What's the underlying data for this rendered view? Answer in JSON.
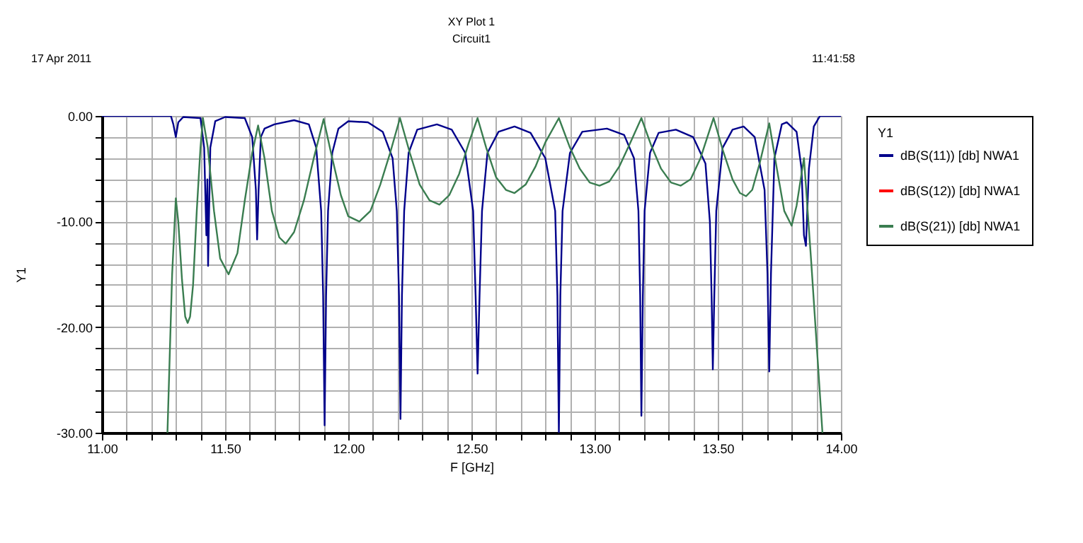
{
  "chart_data": {
    "type": "line",
    "title": "XY Plot 1",
    "subtitle": "Circuit1",
    "xlabel": "F [GHz]",
    "ylabel": "Y1",
    "legend_title": "Y1",
    "annotations": [
      "17 Apr 2011",
      "11:41:58"
    ],
    "xlim": [
      11.0,
      14.0
    ],
    "ylim": [
      -30.0,
      0.0
    ],
    "xticks": [
      {
        "value": 11.0,
        "label": "11.00"
      },
      {
        "value": 11.1,
        "label": null
      },
      {
        "value": 11.2,
        "label": null
      },
      {
        "value": 11.3,
        "label": null
      },
      {
        "value": 11.4,
        "label": null
      },
      {
        "value": 11.5,
        "label": "11.50"
      },
      {
        "value": 11.6,
        "label": null
      },
      {
        "value": 11.7,
        "label": null
      },
      {
        "value": 11.8,
        "label": null
      },
      {
        "value": 11.9,
        "label": null
      },
      {
        "value": 12.0,
        "label": "12.00"
      },
      {
        "value": 12.1,
        "label": null
      },
      {
        "value": 12.2,
        "label": null
      },
      {
        "value": 12.3,
        "label": null
      },
      {
        "value": 12.4,
        "label": null
      },
      {
        "value": 12.5,
        "label": "12.50"
      },
      {
        "value": 12.6,
        "label": null
      },
      {
        "value": 12.7,
        "label": null
      },
      {
        "value": 12.8,
        "label": null
      },
      {
        "value": 12.9,
        "label": null
      },
      {
        "value": 13.0,
        "label": "13.00"
      },
      {
        "value": 13.1,
        "label": null
      },
      {
        "value": 13.2,
        "label": null
      },
      {
        "value": 13.3,
        "label": null
      },
      {
        "value": 13.4,
        "label": null
      },
      {
        "value": 13.5,
        "label": "13.50"
      },
      {
        "value": 13.6,
        "label": null
      },
      {
        "value": 13.7,
        "label": null
      },
      {
        "value": 13.8,
        "label": null
      },
      {
        "value": 13.9,
        "label": null
      },
      {
        "value": 14.0,
        "label": "14.00"
      }
    ],
    "yticks": [
      {
        "value": -30,
        "label": "-30.00"
      },
      {
        "value": -28,
        "label": null
      },
      {
        "value": -26,
        "label": null
      },
      {
        "value": -24,
        "label": null
      },
      {
        "value": -22,
        "label": null
      },
      {
        "value": -20,
        "label": "-20.00"
      },
      {
        "value": -18,
        "label": null
      },
      {
        "value": -16,
        "label": null
      },
      {
        "value": -14,
        "label": null
      },
      {
        "value": -12,
        "label": null
      },
      {
        "value": -10,
        "label": "-10.00"
      },
      {
        "value": -8,
        "label": null
      },
      {
        "value": -6,
        "label": null
      },
      {
        "value": -4,
        "label": null
      },
      {
        "value": -2,
        "label": null
      },
      {
        "value": 0,
        "label": "0.00"
      }
    ],
    "grid": true,
    "legend": "right",
    "marker": "none",
    "line_style": "solid",
    "series": [
      {
        "name": "dB(S(11)) [db] NWA1",
        "color": "#00008b",
        "x": [
          11.0,
          11.28,
          11.29,
          11.3,
          11.31,
          11.33,
          11.4,
          11.415,
          11.424,
          11.428,
          11.431,
          11.44,
          11.46,
          11.5,
          11.58,
          11.61,
          11.625,
          11.63,
          11.636,
          11.645,
          11.66,
          11.7,
          11.78,
          11.84,
          11.87,
          11.89,
          11.898,
          11.904,
          11.91,
          11.918,
          11.935,
          11.96,
          12.0,
          12.08,
          12.14,
          12.18,
          12.197,
          12.206,
          12.212,
          12.218,
          12.227,
          12.245,
          12.28,
          12.36,
          12.42,
          12.475,
          12.507,
          12.517,
          12.525,
          12.533,
          12.543,
          12.565,
          12.61,
          12.675,
          12.74,
          12.8,
          12.84,
          12.849,
          12.855,
          12.861,
          12.87,
          12.9,
          12.95,
          13.05,
          13.12,
          13.16,
          13.178,
          13.185,
          13.19,
          13.196,
          13.203,
          13.225,
          13.26,
          13.33,
          13.4,
          13.45,
          13.468,
          13.475,
          13.48,
          13.486,
          13.494,
          13.52,
          13.56,
          13.605,
          13.65,
          13.69,
          13.702,
          13.709,
          13.716,
          13.73,
          13.76,
          13.78,
          13.82,
          13.84,
          13.85,
          13.858,
          13.87,
          13.89,
          13.915,
          14.0
        ],
        "values": [
          0,
          0,
          -0.8,
          -2,
          -0.6,
          -0.1,
          -0.2,
          -3,
          -11.3,
          -6,
          -14.2,
          -3,
          -0.5,
          -0.1,
          -0.2,
          -2,
          -7,
          -11.7,
          -7,
          -2,
          -1.2,
          -0.8,
          -0.4,
          -0.8,
          -3,
          -9,
          -17,
          -29.3,
          -17,
          -9,
          -3.5,
          -1.2,
          -0.5,
          -0.6,
          -1.5,
          -4,
          -9,
          -17,
          -28.7,
          -17,
          -9,
          -3.5,
          -1.3,
          -0.8,
          -1.3,
          -3.5,
          -9,
          -17,
          -24.4,
          -17,
          -9,
          -3.5,
          -1.5,
          -1.0,
          -1.6,
          -4,
          -9,
          -17,
          -30,
          -17,
          -9,
          -3.5,
          -1.5,
          -1.2,
          -1.8,
          -4,
          -9,
          -17,
          -28.4,
          -17,
          -9,
          -3.5,
          -1.6,
          -1.3,
          -2,
          -4.5,
          -10,
          -17,
          -24,
          -17,
          -9,
          -3,
          -1.3,
          -1.0,
          -2,
          -7,
          -15,
          -24.2,
          -15,
          -4,
          -0.8,
          -0.6,
          -1.5,
          -5,
          -11.3,
          -12.3,
          -5,
          -1,
          0,
          0
        ]
      },
      {
        "name": "dB(S(12)) [db] NWA1",
        "color": "#ff0000"
      },
      {
        "name": "dB(S(21)) [db] NWA1",
        "color": "#3a7d50",
        "x": [
          11.266,
          11.285,
          11.3,
          11.31,
          11.325,
          11.338,
          11.348,
          11.358,
          11.37,
          11.385,
          11.4,
          11.41,
          11.43,
          11.455,
          11.48,
          11.514,
          11.55,
          11.58,
          11.61,
          11.634,
          11.66,
          11.69,
          11.72,
          11.746,
          11.78,
          11.82,
          11.86,
          11.9,
          11.93,
          11.97,
          12.0,
          12.045,
          12.09,
          12.13,
          12.17,
          12.21,
          12.25,
          12.29,
          12.33,
          12.37,
          12.41,
          12.45,
          12.49,
          12.525,
          12.56,
          12.6,
          12.64,
          12.675,
          12.72,
          12.76,
          12.8,
          12.855,
          12.9,
          12.94,
          12.98,
          13.02,
          13.06,
          13.1,
          13.14,
          13.19,
          13.23,
          13.27,
          13.31,
          13.35,
          13.39,
          13.43,
          13.483,
          13.52,
          13.56,
          13.59,
          13.615,
          13.64,
          13.67,
          13.709,
          13.74,
          13.77,
          13.8,
          13.82,
          13.85,
          13.88,
          13.925
        ],
        "values": [
          -30,
          -15,
          -7.8,
          -10,
          -15.5,
          -19.0,
          -19.6,
          -19.0,
          -16,
          -9,
          -3,
          -0.2,
          -3,
          -9,
          -13.5,
          -15.0,
          -13,
          -8,
          -3.5,
          -0.9,
          -4,
          -9,
          -11.5,
          -12.1,
          -11,
          -8,
          -4,
          -0.3,
          -3.5,
          -7.5,
          -9.5,
          -10.0,
          -9,
          -6.5,
          -3.5,
          -0.2,
          -3.5,
          -6.5,
          -8,
          -8.4,
          -7.5,
          -5.5,
          -2.5,
          -0.2,
          -3,
          -5.8,
          -7,
          -7.3,
          -6.5,
          -4.8,
          -2.5,
          -0.2,
          -3,
          -5,
          -6.3,
          -6.6,
          -6.2,
          -4.8,
          -2.8,
          -0.2,
          -2.8,
          -5,
          -6.3,
          -6.6,
          -6,
          -4,
          -0.2,
          -3.2,
          -6,
          -7.3,
          -7.6,
          -7,
          -4.5,
          -0.7,
          -5,
          -9,
          -10.4,
          -8.5,
          -4,
          -14,
          -30
        ]
      }
    ]
  }
}
